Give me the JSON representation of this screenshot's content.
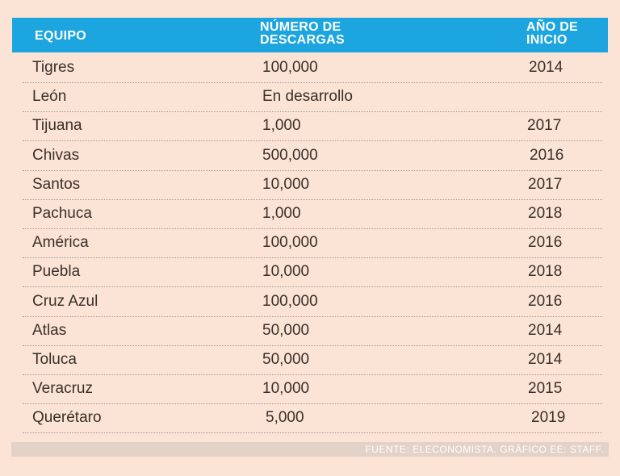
{
  "table": {
    "headers": {
      "team": "EQUIPO",
      "downloads_line1": "NÚMERO DE",
      "downloads_line2": "DESCARGAS",
      "year_line1": "AÑO DE",
      "year_line2": "INICIO"
    },
    "rows": [
      {
        "team": "Tigres",
        "downloads": "100,000",
        "year": "2014"
      },
      {
        "team": "León",
        "downloads": "En desarrollo",
        "year": ""
      },
      {
        "team": "Tijuana",
        "downloads": "1,000",
        "year": "2017"
      },
      {
        "team": "Chivas",
        "downloads": "500,000",
        "year": "2016"
      },
      {
        "team": "Santos",
        "downloads": "10,000",
        "year": "2017"
      },
      {
        "team": "Pachuca",
        "downloads": "1,000",
        "year": "2018"
      },
      {
        "team": "América",
        "downloads": "100,000",
        "year": "2016"
      },
      {
        "team": "Puebla",
        "downloads": "10,000",
        "year": "2018"
      },
      {
        "team": "Cruz Azul",
        "downloads": "100,000",
        "year": "2016"
      },
      {
        "team": "Atlas",
        "downloads": "50,000",
        "year": "2014"
      },
      {
        "team": "Toluca",
        "downloads": "50,000",
        "year": "2014"
      },
      {
        "team": "Veracruz",
        "downloads": "10,000",
        "year": "2015"
      },
      {
        "team": "Querétaro",
        "downloads": "5,000",
        "year": "2019"
      }
    ]
  },
  "footer": {
    "source": "FUENTE: ELECONOMISTA. GRÁFICO EE: STAFF."
  },
  "colors": {
    "header_bg": "#1da5e0",
    "page_bg": "#fbe4d5",
    "text": "#3b2f2a"
  }
}
